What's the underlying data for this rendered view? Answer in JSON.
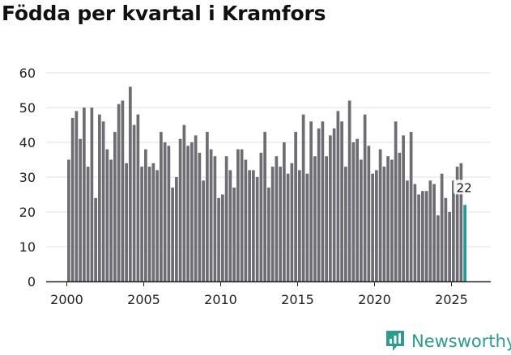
{
  "title": "Födda per kvartal i Kramfors",
  "brand": "Newsworthy",
  "colors": {
    "bar": "#6e6d73",
    "highlight": "#1f9a95",
    "grid": "#e0e0e0",
    "axis": "#222222"
  },
  "chart_data": {
    "type": "bar",
    "title": "Födda per kvartal i Kramfors",
    "xlabel": "",
    "ylabel": "",
    "ylim": [
      0,
      60
    ],
    "yticks": [
      0,
      10,
      20,
      30,
      40,
      50,
      60
    ],
    "xticks": [
      2000,
      2005,
      2010,
      2015,
      2020,
      2025
    ],
    "x_start": 2000.0,
    "period_years": 0.25,
    "values": [
      35,
      47,
      49,
      41,
      50,
      33,
      50,
      24,
      48,
      46,
      38,
      35,
      43,
      51,
      52,
      34,
      56,
      45,
      48,
      33,
      38,
      33,
      34,
      32,
      43,
      40,
      39,
      27,
      30,
      41,
      45,
      39,
      40,
      42,
      37,
      29,
      43,
      38,
      36,
      24,
      25,
      36,
      32,
      27,
      38,
      38,
      35,
      32,
      32,
      30,
      37,
      43,
      27,
      33,
      36,
      33,
      40,
      31,
      34,
      43,
      32,
      48,
      31,
      46,
      36,
      44,
      46,
      36,
      42,
      44,
      49,
      46,
      33,
      52,
      40,
      41,
      35,
      48,
      39,
      31,
      32,
      38,
      33,
      36,
      35,
      46,
      37,
      42,
      29,
      43,
      28,
      25,
      26,
      26,
      29,
      28,
      19,
      31,
      24,
      20,
      29,
      33,
      34,
      22
    ],
    "highlight_last": true,
    "last_label": "22"
  }
}
